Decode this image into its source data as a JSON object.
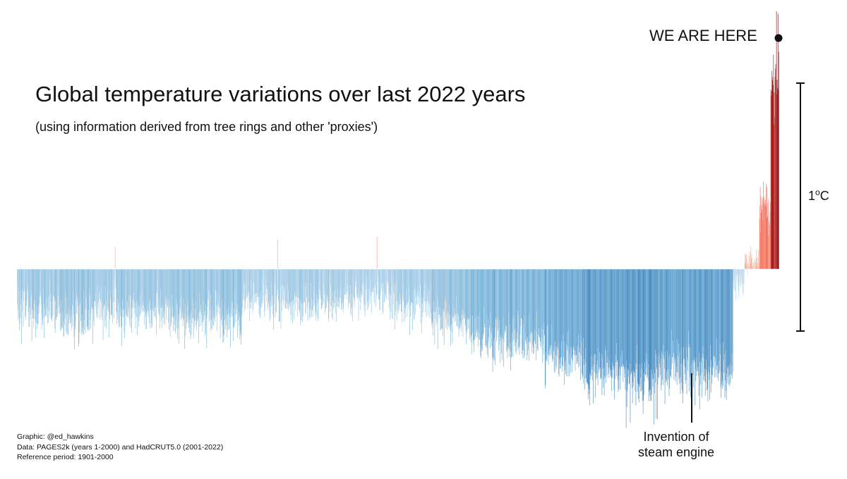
{
  "header": {
    "title": "Global temperature variations over last 2022 years",
    "subtitle": "(using information derived from tree rings and other 'proxies')"
  },
  "annotations": {
    "we_are_here": "WE ARE HERE",
    "scale_value": "1",
    "scale_degree": "o",
    "scale_unit": "C",
    "steam_line1": "Invention of",
    "steam_line2": "steam engine"
  },
  "credits": {
    "graphic": "Graphic: @ed_hawkins",
    "data": "Data: PAGES2k (years 1-2000) and HadCRUT5.0 (2001-2022)",
    "reference": "Reference period: 1901-2000"
  },
  "colors": {
    "cool_light": "#c6dbef",
    "cool_mid": "#6baed6",
    "cool_dark": "#2171b5",
    "warm_light": "#fcbba1",
    "warm_mid": "#ef3b2c",
    "warm_dark": "#67000d",
    "ink": "#111111"
  },
  "chart_data": {
    "type": "bar",
    "x_range": [
      1,
      2022
    ],
    "y_reference": 0,
    "y_unit": "°C",
    "scale_bar_value": 1,
    "ylim": [
      -0.7,
      1.1
    ],
    "segments": [
      {
        "from": 1,
        "to": 100,
        "mean": -0.17,
        "var": 0.1
      },
      {
        "from": 101,
        "to": 200,
        "mean": -0.2,
        "var": 0.1
      },
      {
        "from": 201,
        "to": 300,
        "mean": -0.16,
        "var": 0.1
      },
      {
        "from": 301,
        "to": 400,
        "mean": -0.16,
        "var": 0.09
      },
      {
        "from": 401,
        "to": 500,
        "mean": -0.19,
        "var": 0.1
      },
      {
        "from": 501,
        "to": 600,
        "mean": -0.2,
        "var": 0.1
      },
      {
        "from": 601,
        "to": 700,
        "mean": -0.13,
        "var": 0.09
      },
      {
        "from": 701,
        "to": 800,
        "mean": -0.14,
        "var": 0.08
      },
      {
        "from": 801,
        "to": 900,
        "mean": -0.12,
        "var": 0.09
      },
      {
        "from": 901,
        "to": 1000,
        "mean": -0.11,
        "var": 0.08
      },
      {
        "from": 1001,
        "to": 1100,
        "mean": -0.15,
        "var": 0.08
      },
      {
        "from": 1101,
        "to": 1200,
        "mean": -0.21,
        "var": 0.09
      },
      {
        "from": 1201,
        "to": 1300,
        "mean": -0.27,
        "var": 0.1
      },
      {
        "from": 1301,
        "to": 1400,
        "mean": -0.28,
        "var": 0.1
      },
      {
        "from": 1401,
        "to": 1500,
        "mean": -0.35,
        "var": 0.11
      },
      {
        "from": 1501,
        "to": 1600,
        "mean": -0.42,
        "var": 0.11
      },
      {
        "from": 1601,
        "to": 1700,
        "mean": -0.46,
        "var": 0.12
      },
      {
        "from": 1701,
        "to": 1800,
        "mean": -0.4,
        "var": 0.11
      },
      {
        "from": 1801,
        "to": 1900,
        "mean": -0.42,
        "var": 0.12
      },
      {
        "from": 1901,
        "to": 1930,
        "mean": -0.05,
        "var": 0.06
      },
      {
        "from": 1931,
        "to": 1970,
        "mean": 0.03,
        "var": 0.05
      },
      {
        "from": 1971,
        "to": 2000,
        "mean": 0.25,
        "var": 0.08
      },
      {
        "from": 2001,
        "to": 2022,
        "mean": 0.75,
        "var": 0.12
      }
    ],
    "peaks": [
      {
        "year": 261,
        "value": 0.09
      },
      {
        "year": 692,
        "value": 0.12
      },
      {
        "year": 956,
        "value": 0.13
      },
      {
        "year": 1617,
        "value": -0.64
      },
      {
        "year": 1800,
        "value": -0.55
      },
      {
        "year": 2016,
        "value": 1.04
      },
      {
        "year": 2020,
        "value": 1.03
      }
    ],
    "we_are_here_year": 2022,
    "we_are_here_value": 0.9,
    "steam_engine_year": 1776
  }
}
